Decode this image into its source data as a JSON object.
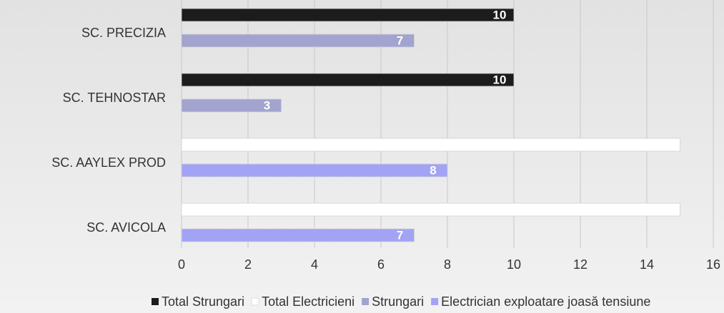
{
  "chart_data": {
    "type": "bar",
    "orientation": "horizontal",
    "categories": [
      "SC. PRECIZIA",
      "SC. TEHNOSTAR",
      "SC.  AAYLEX PROD",
      "SC.  AVICOLA"
    ],
    "series": [
      {
        "name": "Total Strungari",
        "color": "#1c1c1c",
        "values": [
          10,
          10,
          null,
          null
        ]
      },
      {
        "name": "Total Electricieni",
        "color": "#ffffff",
        "values": [
          null,
          null,
          15,
          15
        ]
      },
      {
        "name": "Strungari",
        "color": "#a3a3cf",
        "values": [
          7,
          3,
          null,
          null
        ]
      },
      {
        "name": "Electrician exploatare joasă tensiune",
        "color": "#a3a3f5",
        "values": [
          null,
          null,
          8,
          7
        ]
      }
    ],
    "xlim": [
      0,
      16
    ],
    "xticks": [
      0,
      2,
      4,
      6,
      8,
      10,
      12,
      14,
      16
    ],
    "grid": true,
    "legend": "bottom"
  }
}
